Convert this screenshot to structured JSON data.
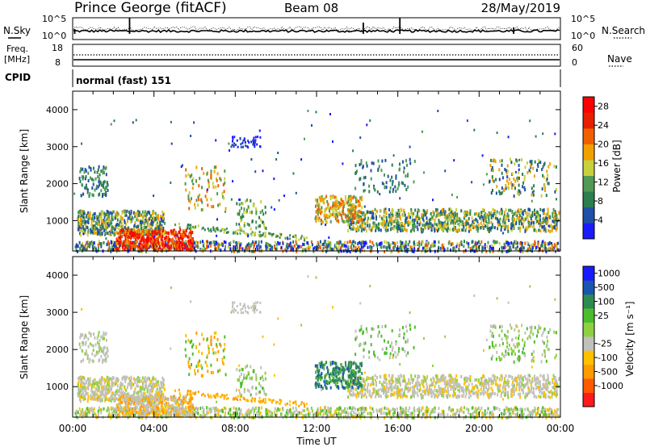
{
  "header": {
    "station": "Prince George (fitACF)",
    "beam": "Beam 08",
    "date": "28/May/2019"
  },
  "noise_panel": {
    "left_label": "N.Sky",
    "right_label": "N.Search",
    "left_ticks": [
      "10^5",
      "10^0"
    ],
    "right_ticks": [
      "10^5",
      "10^0"
    ]
  },
  "freq_panel": {
    "left_label_1": "Freq.",
    "left_label_2": "[MHz]",
    "right_label": "Nave",
    "left_ticks": [
      "18",
      "8"
    ],
    "right_ticks": [
      "60",
      "0"
    ]
  },
  "cpid": {
    "label": "CPID",
    "value": "normal (fast) 151"
  },
  "colors": {
    "power_scale": [
      "#1a1aff",
      "#1f4fa8",
      "#2b7e4f",
      "#4f9a55",
      "#c8d03c",
      "#f0a000",
      "#f06000",
      "#e62000",
      "#ff0000"
    ],
    "velocity_scale": [
      "#ff1a1a",
      "#ff5a00",
      "#ff9a00",
      "#ffc000",
      "#c0c0bc",
      "#8fd040",
      "#4cbb2e",
      "#2f8a52",
      "#1a55b0",
      "#1a1aff"
    ]
  },
  "chart_data": [
    {
      "type": "heatmap",
      "name": "power",
      "ylabel": "Slant Range [km]",
      "yticks": [
        "1000",
        "2000",
        "3000",
        "4000"
      ],
      "ylim": [
        180,
        4500
      ],
      "xlim": [
        "00:00",
        "24:00"
      ],
      "colorbar_label": "Power [dB]",
      "colorbar_ticks": [
        "4",
        "8",
        "12",
        "16",
        "20",
        "24",
        "28"
      ],
      "colorbar_range": [
        0,
        30
      ]
    },
    {
      "type": "heatmap",
      "name": "velocity",
      "ylabel": "Slant Range [km]",
      "yticks": [
        "1000",
        "2000",
        "3000",
        "4000"
      ],
      "ylim": [
        180,
        4500
      ],
      "xlabel": "Time UT",
      "xticks": [
        "00:00",
        "04:00",
        "08:00",
        "12:00",
        "16:00",
        "20:00",
        "00:00"
      ],
      "colorbar_label": "Velocity [m s⁻¹]",
      "colorbar_ticks": [
        "1000",
        "500",
        "100",
        "25",
        "-25",
        "-100",
        "-500",
        "-1000"
      ]
    }
  ]
}
